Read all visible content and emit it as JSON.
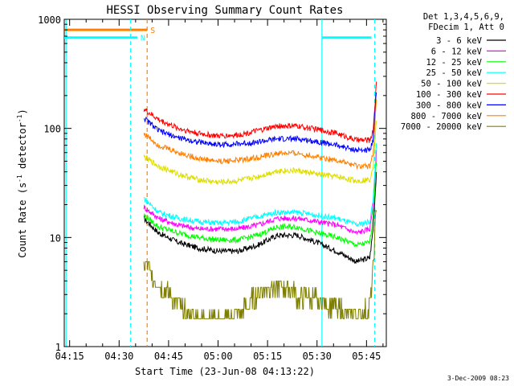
{
  "chart_data": {
    "type": "line",
    "title": "HESSI Observing Summary Count Rates",
    "xlabel": "Start Time (23-Jun-08 04:13:22)",
    "ylabel": "Count Rate (s⁻¹ detector⁻¹)",
    "ylabel_main": "Count Rate (s",
    "ylabel_mid": " detector",
    "ylabel_end": ")",
    "ylabel_sup": "-1",
    "y_scale": "log",
    "xlim": [
      "04:13:22",
      "05:51:00"
    ],
    "ylim": [
      1,
      1000
    ],
    "x_ticks": [
      "04:15",
      "04:30",
      "04:45",
      "05:00",
      "05:15",
      "05:30",
      "05:45"
    ],
    "x_tick_minutes": [
      15,
      30,
      45,
      60,
      75,
      90,
      105
    ],
    "y_ticks": [
      "1",
      "10",
      "100",
      "1000"
    ],
    "y_tick_values": [
      1,
      10,
      100,
      1000
    ],
    "x_unit": "minutes after 04:00",
    "legend": {
      "placement": "outside-right",
      "header": [
        "Det 1,3,4,5,6,9,",
        "FDecim 1, Att 0"
      ]
    },
    "series": [
      {
        "name": "3 - 6 keV",
        "color": "#000000",
        "x": [
          37.5,
          42,
          48,
          54,
          60,
          66,
          72,
          78,
          84,
          90,
          96,
          102,
          106,
          107,
          108
        ],
        "y": [
          15,
          11,
          9,
          8,
          7.5,
          7.5,
          8.5,
          10.5,
          10.5,
          9,
          7.5,
          6,
          6.5,
          12,
          40
        ]
      },
      {
        "name": "6 - 12 keV",
        "color": "#ff00ff",
        "x": [
          37.5,
          42,
          48,
          54,
          60,
          66,
          72,
          78,
          84,
          90,
          96,
          102,
          106,
          107,
          108
        ],
        "y": [
          19,
          15,
          13,
          12,
          12,
          12,
          13,
          15,
          15,
          14,
          13,
          11,
          12,
          20,
          60
        ]
      },
      {
        "name": "12 - 25 keV",
        "color": "#00ff00",
        "x": [
          37.5,
          42,
          48,
          54,
          60,
          66,
          72,
          78,
          84,
          90,
          96,
          102,
          106,
          107,
          108
        ],
        "y": [
          16,
          12.5,
          11,
          10,
          9.5,
          9.5,
          10.5,
          12.5,
          12.5,
          11,
          10,
          8.5,
          9,
          16,
          50
        ]
      },
      {
        "name": "25 - 50 keV",
        "color": "#00ffff",
        "x": [
          37.5,
          42,
          48,
          54,
          60,
          66,
          72,
          78,
          84,
          90,
          96,
          102,
          106,
          107,
          108
        ],
        "y": [
          23,
          17,
          15,
          14,
          13.5,
          14,
          15.5,
          17,
          17,
          16,
          15,
          13,
          14,
          22,
          70
        ]
      },
      {
        "name": "50 - 100 keV",
        "color": "#dddd00",
        "x": [
          37.5,
          42,
          48,
          54,
          60,
          66,
          72,
          78,
          84,
          90,
          96,
          102,
          106,
          107,
          108
        ],
        "y": [
          55,
          45,
          38,
          34,
          32,
          33,
          36,
          41,
          41,
          38,
          36,
          33,
          34,
          45,
          120
        ]
      },
      {
        "name": "100 - 300 keV",
        "color": "#ff0000",
        "x": [
          37.5,
          42,
          48,
          54,
          60,
          66,
          72,
          78,
          84,
          90,
          96,
          102,
          106,
          107,
          108
        ],
        "y": [
          150,
          120,
          100,
          90,
          85,
          87,
          95,
          105,
          105,
          98,
          90,
          78,
          78,
          95,
          260
        ]
      },
      {
        "name": "300 - 800 keV",
        "color": "#0000ff",
        "x": [
          37.5,
          42,
          48,
          54,
          60,
          66,
          72,
          78,
          84,
          90,
          96,
          102,
          106,
          107,
          108
        ],
        "y": [
          125,
          95,
          82,
          75,
          71,
          72,
          75,
          80,
          80,
          76,
          70,
          63,
          63,
          80,
          220
        ]
      },
      {
        "name": "800 - 7000 keV",
        "color": "#ff8000",
        "x": [
          37.5,
          42,
          48,
          54,
          60,
          66,
          72,
          78,
          84,
          90,
          96,
          102,
          106,
          107,
          108
        ],
        "y": [
          90,
          70,
          60,
          53,
          50,
          51,
          54,
          59,
          59,
          55,
          51,
          45,
          45,
          60,
          180
        ]
      },
      {
        "name": "7000 - 20000 keV",
        "color": "#808000",
        "x": [
          37.5,
          39,
          41,
          43,
          45,
          47,
          49,
          52,
          56,
          60,
          64,
          68,
          72,
          75,
          78,
          82,
          84,
          87,
          90,
          93,
          96,
          100,
          104,
          106,
          107,
          108
        ],
        "y": [
          6,
          5,
          4,
          3.5,
          3,
          2.6,
          2.2,
          1.8,
          1.8,
          1.7,
          1.8,
          2.2,
          3,
          3.5,
          3.6,
          3.4,
          2.8,
          2.8,
          2.6,
          2.4,
          2.2,
          2,
          2,
          2.2,
          5,
          20
        ]
      }
    ],
    "flags": [
      {
        "label": "S",
        "color": "#ff8000",
        "x_start": 13.37,
        "x_end": 38.5,
        "y": 800
      },
      {
        "label": "N",
        "color": "#00ffff",
        "x_start": 13.37,
        "x_end": 35.5,
        "y": 680
      },
      {
        "label": "",
        "color": "#00ffff",
        "x_start": 91.5,
        "x_end": 106.5,
        "y": 680
      }
    ],
    "vlines": [
      {
        "x": 13.9,
        "color": "#00ffff",
        "style": "solid"
      },
      {
        "x": 33.5,
        "color": "#00ffff",
        "style": "dashed"
      },
      {
        "x": 38.5,
        "color": "#ff8000",
        "style": "dashed"
      },
      {
        "x": 91.5,
        "color": "#00ffff",
        "style": "solid"
      },
      {
        "x": 107.5,
        "color": "#00ffff",
        "style": "dashed"
      }
    ],
    "grid": false
  },
  "footer": {
    "timestamp": "3-Dec-2009 08:23"
  }
}
